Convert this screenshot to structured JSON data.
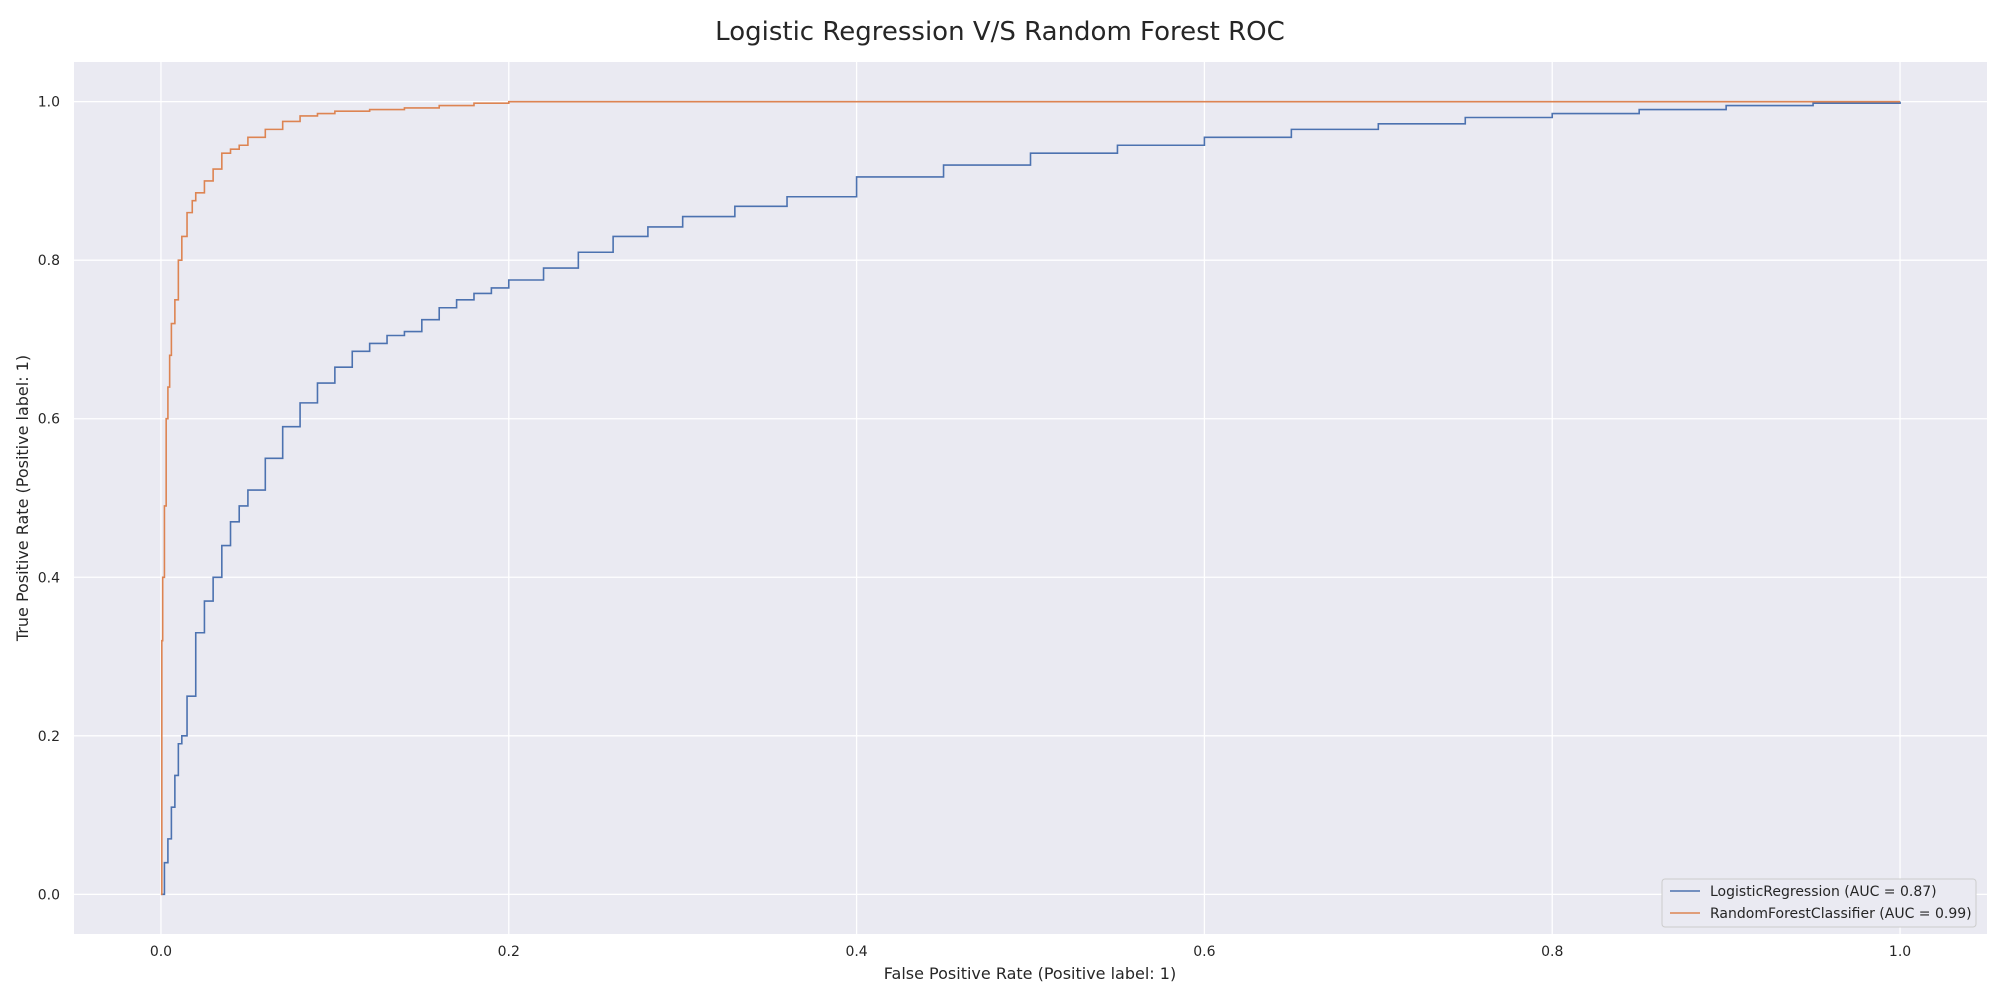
{
  "chart_data": {
    "type": "line",
    "title": "Logistic Regression V/S Random Forest ROC",
    "xlabel": "False Positive Rate (Positive label: 1)",
    "ylabel": "True Positive Rate (Positive label: 1)",
    "xlim": [
      -0.05,
      1.05
    ],
    "ylim": [
      -0.05,
      1.05
    ],
    "xticks": [
      "0.0",
      "0.2",
      "0.4",
      "0.6",
      "0.8",
      "1.0"
    ],
    "yticks": [
      "0.0",
      "0.2",
      "0.4",
      "0.6",
      "0.8",
      "1.0"
    ],
    "grid": true,
    "legend_position": "lower-right",
    "series": [
      {
        "name": "LogisticRegression (AUC = 0.87)",
        "color": "#4c72b0",
        "x": [
          0,
          0.002,
          0.004,
          0.006,
          0.008,
          0.01,
          0.012,
          0.015,
          0.02,
          0.025,
          0.03,
          0.035,
          0.04,
          0.045,
          0.05,
          0.06,
          0.07,
          0.08,
          0.09,
          0.1,
          0.11,
          0.12,
          0.13,
          0.14,
          0.15,
          0.16,
          0.17,
          0.18,
          0.19,
          0.2,
          0.22,
          0.24,
          0.26,
          0.28,
          0.3,
          0.33,
          0.36,
          0.4,
          0.45,
          0.5,
          0.55,
          0.6,
          0.65,
          0.7,
          0.75,
          0.8,
          0.85,
          0.9,
          0.95,
          1.0
        ],
        "y": [
          0,
          0.04,
          0.07,
          0.11,
          0.15,
          0.19,
          0.2,
          0.25,
          0.33,
          0.37,
          0.4,
          0.44,
          0.47,
          0.49,
          0.51,
          0.55,
          0.59,
          0.62,
          0.645,
          0.665,
          0.685,
          0.695,
          0.705,
          0.71,
          0.725,
          0.74,
          0.75,
          0.758,
          0.765,
          0.775,
          0.79,
          0.81,
          0.83,
          0.842,
          0.855,
          0.868,
          0.88,
          0.905,
          0.92,
          0.935,
          0.945,
          0.955,
          0.965,
          0.972,
          0.98,
          0.985,
          0.99,
          0.995,
          0.998,
          1.0
        ]
      },
      {
        "name": "RandomForestClassifier (AUC = 0.99)",
        "color": "#dd8452",
        "x": [
          0,
          0.0005,
          0.001,
          0.002,
          0.003,
          0.004,
          0.005,
          0.006,
          0.008,
          0.01,
          0.012,
          0.015,
          0.018,
          0.02,
          0.025,
          0.03,
          0.035,
          0.04,
          0.045,
          0.05,
          0.06,
          0.07,
          0.08,
          0.09,
          0.1,
          0.12,
          0.14,
          0.16,
          0.18,
          0.2,
          0.3,
          0.4,
          0.6,
          0.8,
          1.0
        ],
        "y": [
          0,
          0.32,
          0.4,
          0.49,
          0.6,
          0.64,
          0.68,
          0.72,
          0.75,
          0.8,
          0.83,
          0.86,
          0.875,
          0.885,
          0.9,
          0.915,
          0.935,
          0.94,
          0.945,
          0.955,
          0.965,
          0.975,
          0.982,
          0.985,
          0.988,
          0.99,
          0.992,
          0.995,
          0.998,
          1.0,
          1.0,
          1.0,
          1.0,
          1.0,
          1.0
        ]
      }
    ]
  }
}
